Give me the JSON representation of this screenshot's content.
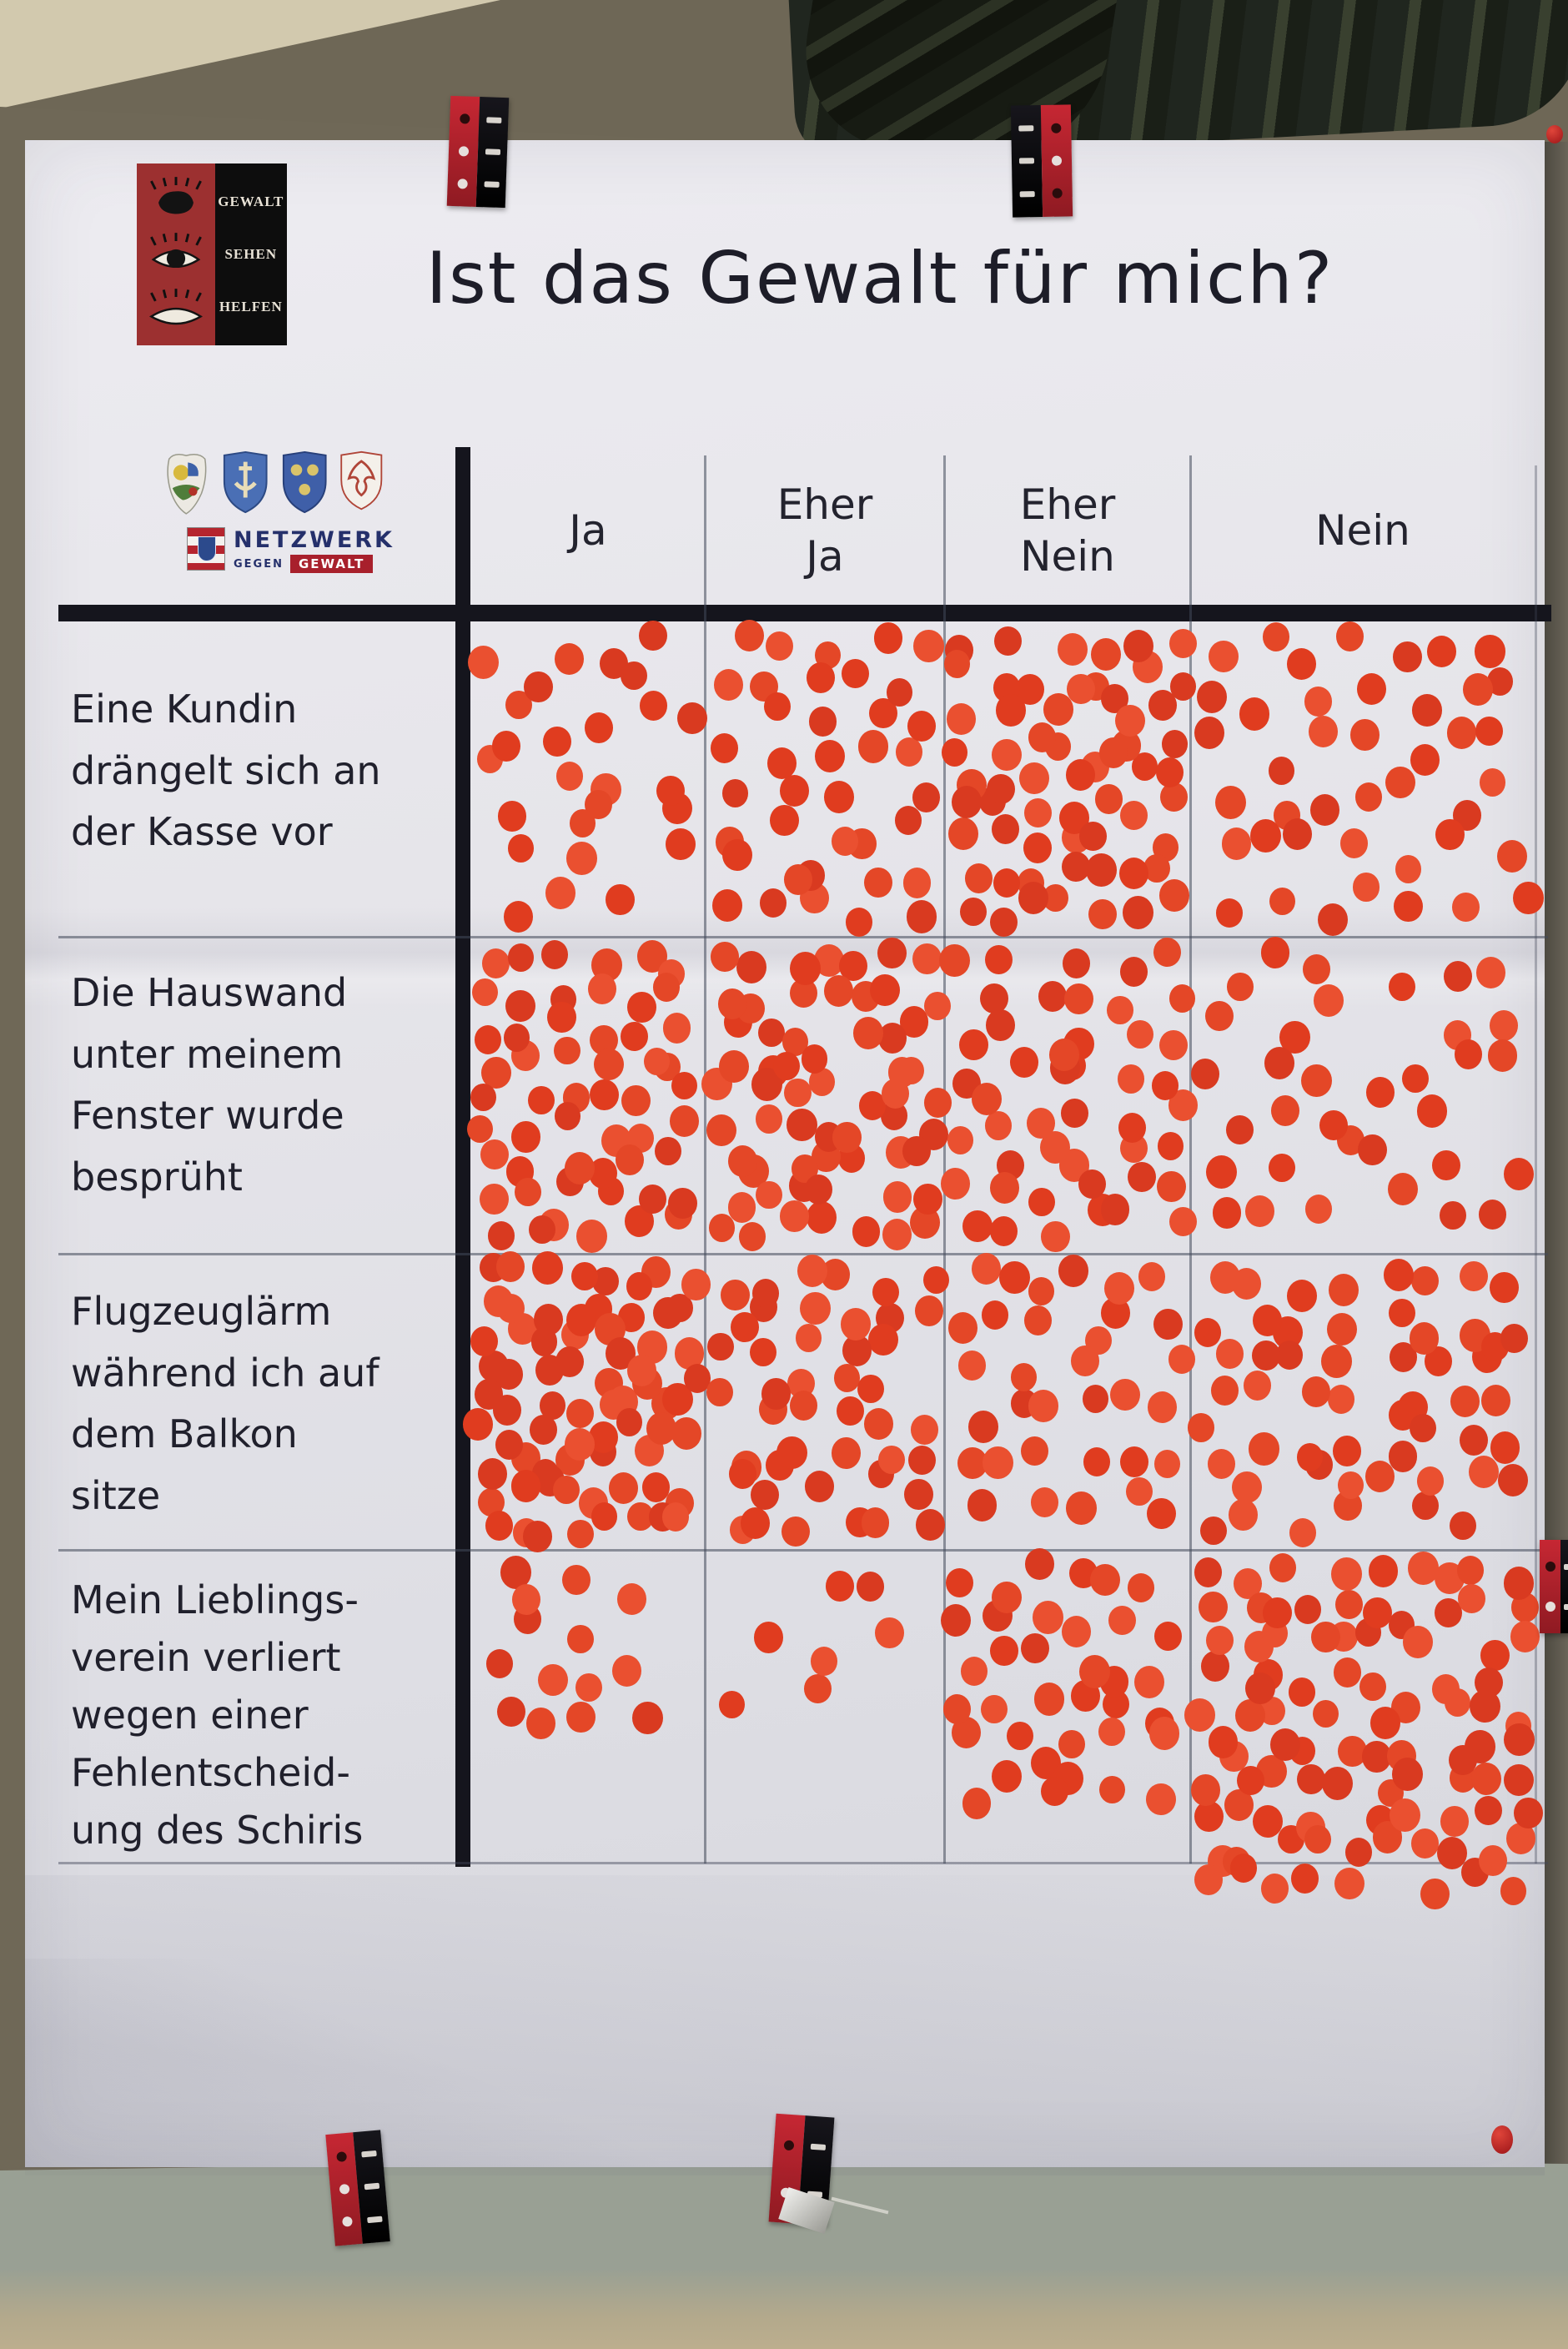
{
  "poster": {
    "title": "Ist das Gewalt für mich?",
    "gsh_logo": {
      "lines": [
        "GEWALT",
        "SEHEN",
        "HELFEN"
      ]
    },
    "network_logo": {
      "main": "NETZWERK",
      "sub": "GEGEN",
      "box": "GEWALT"
    }
  },
  "table": {
    "columns": [
      {
        "lines": [
          "Ja"
        ]
      },
      {
        "lines": [
          "Eher",
          "Ja"
        ]
      },
      {
        "lines": [
          "Eher",
          "Nein"
        ]
      },
      {
        "lines": [
          "Nein"
        ]
      }
    ],
    "rows": [
      {
        "lines": [
          "Eine Kundin",
          "drängelt sich an",
          "der Kasse vor"
        ]
      },
      {
        "lines": [
          "Die Hauswand",
          "unter meinem",
          "Fenster wurde",
          "besprüht"
        ]
      },
      {
        "lines": [
          "Flugzeuglärm",
          "während ich auf",
          "dem Balkon",
          "sitze"
        ]
      },
      {
        "lines": [
          "Mein Lieblings-",
          "verein verliert",
          "wegen einer",
          "Fehlentscheid-",
          "ung des Schiris"
        ]
      }
    ]
  },
  "chart_data": {
    "type": "table",
    "title": "Ist das Gewalt für mich?",
    "categories": [
      "Ja",
      "Eher Ja",
      "Eher Nein",
      "Nein"
    ],
    "rows": [
      {
        "statement": "Eine Kundin drängelt sich an der Kasse vor",
        "dot_counts": [
          26,
          38,
          60,
          42
        ]
      },
      {
        "statement": "Die Hauswand unter meinem Fenster wurde besprüht",
        "dot_counts": [
          54,
          60,
          46,
          34
        ]
      },
      {
        "statement": "Flugzeuglärm während ich auf dem Balkon sitze",
        "dot_counts": [
          70,
          44,
          33,
          54
        ]
      },
      {
        "statement": "Mein Lieblingsverein verliert wegen einer Fehlentscheidung des Schiris",
        "dot_counts": [
          14,
          7,
          36,
          92
        ]
      }
    ],
    "dot_color": "#e2411f",
    "unit": "sticker dot votes (counts estimated from photo)"
  }
}
